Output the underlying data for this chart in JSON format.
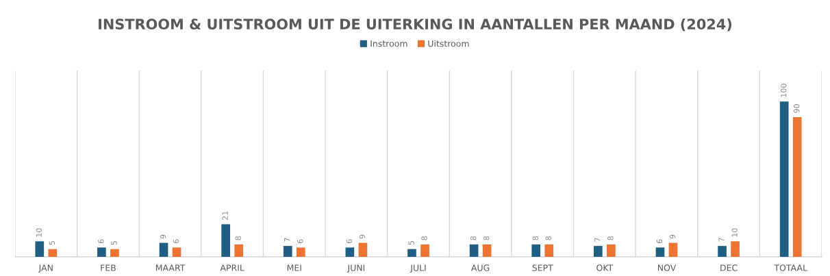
{
  "chart_data": {
    "type": "bar",
    "title": "INSTROOM & UITSTROOM UIT DE UITERKING IN AANTALLEN PER MAAND (2024)",
    "categories": [
      "JAN",
      "FEB",
      "MAART",
      "APRIL",
      "MEI",
      "JUNI",
      "JULI",
      "AUG",
      "SEPT",
      "OKT",
      "NOV",
      "DEC",
      "TOTAAL"
    ],
    "series": [
      {
        "name": "Instroom",
        "color": "#1f5f84",
        "values": [
          10,
          6,
          9,
          21,
          7,
          6,
          5,
          8,
          8,
          7,
          6,
          7,
          100
        ]
      },
      {
        "name": "Uitstroom",
        "color": "#ed7433",
        "values": [
          5,
          5,
          6,
          8,
          6,
          9,
          8,
          8,
          8,
          8,
          9,
          10,
          90
        ]
      }
    ],
    "ylim": [
      0,
      120
    ],
    "tick_labels": "x",
    "data_labels": true,
    "grid": "x",
    "legend": "top"
  }
}
